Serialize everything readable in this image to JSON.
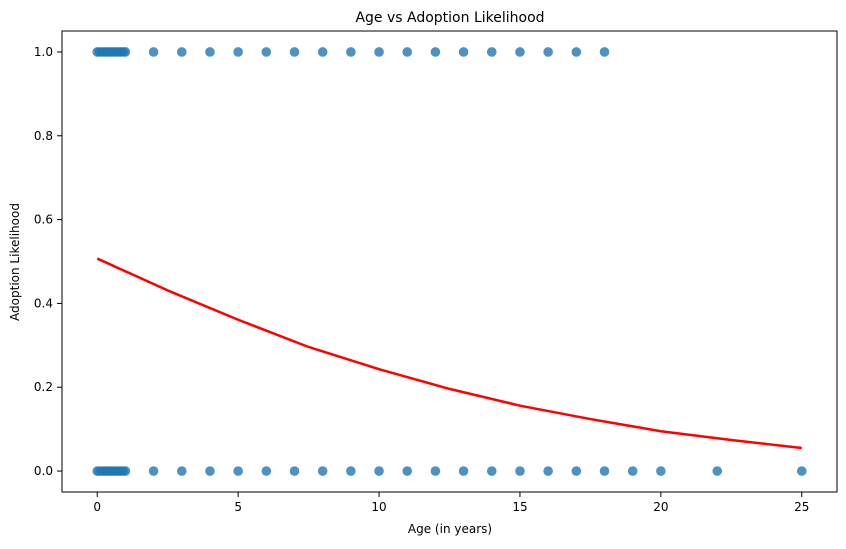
{
  "chart_data": {
    "type": "scatter",
    "title": "Age vs Adoption Likelihood",
    "xlabel": "Age (in years)",
    "ylabel": "Adoption Likelihood",
    "xlim": [
      -1.25,
      26.25
    ],
    "ylim": [
      -0.05,
      1.05
    ],
    "xticks": [
      0,
      5,
      10,
      15,
      20,
      25
    ],
    "yticks": [
      0.0,
      0.2,
      0.4,
      0.6,
      0.8,
      1.0
    ],
    "xtick_labels": [
      "0",
      "5",
      "10",
      "15",
      "20",
      "25"
    ],
    "ytick_labels": [
      "0.0",
      "0.2",
      "0.4",
      "0.6",
      "0.8",
      "1.0"
    ],
    "grid": false,
    "legend": "none",
    "colors": {
      "points": "#1f77b4",
      "curve": "#ff0000",
      "axes": "#000000"
    },
    "series": [
      {
        "kind": "scatter",
        "x": [
          0.0,
          0.08,
          0.17,
          0.25,
          0.33,
          0.42,
          0.5,
          0.58,
          0.67,
          0.75,
          0.83,
          0.92,
          1,
          2,
          3,
          4,
          5,
          6,
          7,
          8,
          9,
          10,
          11,
          12,
          13,
          14,
          15,
          16,
          17,
          18
        ],
        "y": [
          1,
          1,
          1,
          1,
          1,
          1,
          1,
          1,
          1,
          1,
          1,
          1,
          1,
          1,
          1,
          1,
          1,
          1,
          1,
          1,
          1,
          1,
          1,
          1,
          1,
          1,
          1,
          1,
          1,
          1
        ]
      },
      {
        "kind": "scatter",
        "x": [
          0.0,
          0.08,
          0.17,
          0.25,
          0.33,
          0.42,
          0.5,
          0.58,
          0.67,
          0.75,
          0.83,
          0.92,
          1,
          2,
          3,
          4,
          5,
          6,
          7,
          8,
          9,
          10,
          11,
          12,
          13,
          14,
          15,
          16,
          17,
          18,
          19,
          20,
          22,
          25
        ],
        "y": [
          0,
          0,
          0,
          0,
          0,
          0,
          0,
          0,
          0,
          0,
          0,
          0,
          0,
          0,
          0,
          0,
          0,
          0,
          0,
          0,
          0,
          0,
          0,
          0,
          0,
          0,
          0,
          0,
          0,
          0,
          0,
          0,
          0,
          0
        ]
      },
      {
        "kind": "line",
        "x": [
          0,
          2.5,
          5,
          7.5,
          10,
          12.5,
          15,
          17.5,
          20,
          22.5,
          25
        ],
        "y": [
          0.507,
          0.431,
          0.361,
          0.296,
          0.243,
          0.196,
          0.156,
          0.124,
          0.095,
          0.074,
          0.055
        ]
      }
    ]
  }
}
